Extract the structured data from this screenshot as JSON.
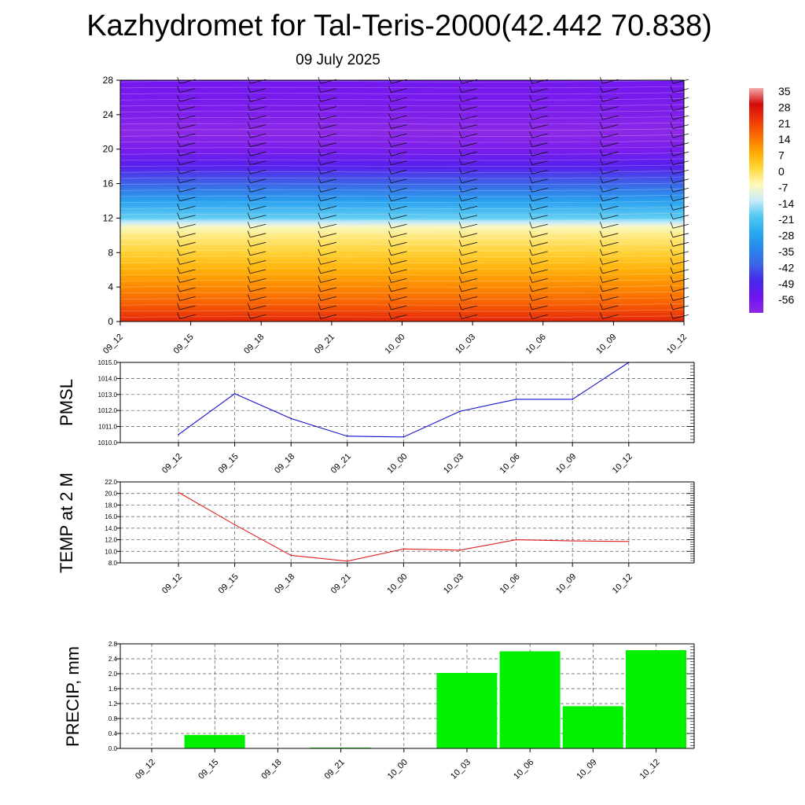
{
  "title": "Kazhydromet for Tal-Teris-2000(42.442 70.838)",
  "subtitle": "09 July 2025",
  "colors": {
    "pmsl_line": "#1010d0",
    "temp_line": "#e02020",
    "precip_bar": "#00f000",
    "grid": "#555555"
  },
  "chart_data": [
    {
      "type": "heatmap",
      "name": "cross-section",
      "x_ticks": [
        "09_12",
        "09_15",
        "09_18",
        "09_21",
        "10_00",
        "10_03",
        "10_06",
        "10_09",
        "10_12"
      ],
      "y_ticks": [
        "0",
        "4",
        "8",
        "12",
        "16",
        "20",
        "24",
        "28"
      ],
      "ylim": [
        0,
        28
      ],
      "colorbar_labels": [
        "35",
        "28",
        "21",
        "14",
        "7",
        "0",
        "-7",
        "-14",
        "-21",
        "-28",
        "-35",
        "-42",
        "-49",
        "-56"
      ],
      "colorbar_range": [
        -63,
        35
      ],
      "level_temperature": [
        {
          "z": 0,
          "t": 24
        },
        {
          "z": 2,
          "t": 16
        },
        {
          "z": 4,
          "t": 11
        },
        {
          "z": 6,
          "t": 6
        },
        {
          "z": 8,
          "t": 1
        },
        {
          "z": 10,
          "t": -4
        },
        {
          "z": 11,
          "t": -8
        },
        {
          "z": 11.5,
          "t": -14
        },
        {
          "z": 12,
          "t": -20
        },
        {
          "z": 14,
          "t": -30
        },
        {
          "z": 16,
          "t": -42
        },
        {
          "z": 18,
          "t": -52
        },
        {
          "z": 20,
          "t": -59
        },
        {
          "z": 22,
          "t": -63
        },
        {
          "z": 24,
          "t": -60
        },
        {
          "z": 26,
          "t": -58
        },
        {
          "z": 28,
          "t": -57
        }
      ]
    },
    {
      "type": "line",
      "name": "PMSL",
      "ylabel": "PMSL",
      "x_ticks": [
        "09_12",
        "09_15",
        "09_18",
        "09_21",
        "10_00",
        "10_03",
        "10_06",
        "10_09",
        "10_12"
      ],
      "y_ticks": [
        "1010.0",
        "1011.0",
        "1012.0",
        "1013.0",
        "1014.0",
        "1015.0"
      ],
      "ylim": [
        1010,
        1015
      ],
      "values": [
        1010.5,
        1013.05,
        1011.5,
        1010.4,
        1010.35,
        1011.95,
        1012.7,
        1012.7,
        1015.0
      ]
    },
    {
      "type": "line",
      "name": "TEMP",
      "ylabel": "TEMP at 2 M",
      "x_ticks": [
        "09_12",
        "09_15",
        "09_18",
        "09_21",
        "10_00",
        "10_03",
        "10_06",
        "10_09",
        "10_12"
      ],
      "y_ticks": [
        "8.0",
        "10.0",
        "12.0",
        "14.0",
        "16.0",
        "18.0",
        "20.0",
        "22.0"
      ],
      "ylim": [
        8,
        22
      ],
      "values": [
        20.2,
        14.6,
        9.3,
        8.3,
        10.4,
        10.2,
        12.0,
        11.8,
        11.7
      ]
    },
    {
      "type": "bar",
      "name": "PRECIP",
      "ylabel": "PRECIP, mm",
      "x_ticks": [
        "09_12",
        "09_15",
        "09_18",
        "09_21",
        "10_00",
        "10_03",
        "10_06",
        "10_09",
        "10_12"
      ],
      "y_ticks": [
        "0.0",
        "0.4",
        "0.8",
        "1.2",
        "1.6",
        "2.0",
        "2.4",
        "2.8"
      ],
      "ylim": [
        0,
        2.8
      ],
      "values": [
        0,
        0.36,
        0,
        0.02,
        0,
        2.02,
        2.6,
        1.13,
        2.63
      ]
    }
  ]
}
